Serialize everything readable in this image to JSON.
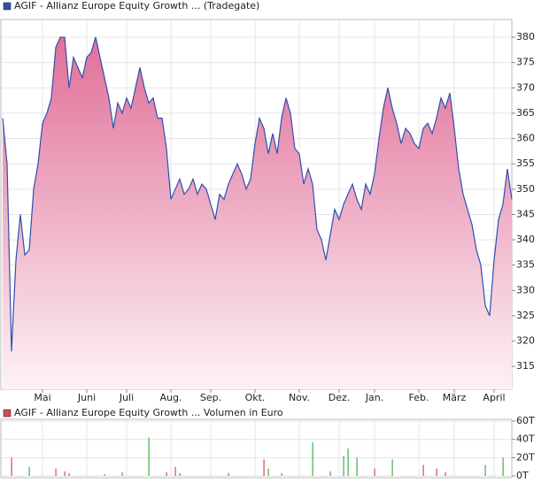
{
  "chart_data": [
    {
      "type": "area",
      "categories": [
        null,
        null,
        null,
        null,
        null,
        null,
        null,
        null,
        null,
        "Mai",
        null,
        null,
        null,
        null,
        null,
        null,
        null,
        null,
        null,
        "Juni",
        null,
        null,
        null,
        null,
        null,
        null,
        null,
        null,
        "Juli",
        null,
        null,
        null,
        null,
        null,
        null,
        null,
        null,
        null,
        "Aug.",
        null,
        null,
        null,
        null,
        null,
        null,
        null,
        null,
        "Sep.",
        null,
        null,
        null,
        null,
        null,
        null,
        null,
        null,
        null,
        "Okt.",
        null,
        null,
        null,
        null,
        null,
        null,
        null,
        null,
        null,
        "Nov.",
        null,
        null,
        null,
        null,
        null,
        null,
        null,
        null,
        "Dez.",
        null,
        null,
        null,
        null,
        null,
        null,
        null,
        "Jan.",
        null,
        null,
        null,
        null,
        null,
        null,
        null,
        null,
        null,
        "Feb.",
        null,
        null,
        null,
        null,
        null,
        null,
        null,
        "März",
        null,
        null,
        null,
        null,
        null,
        null,
        null,
        null,
        "April",
        null,
        null,
        null,
        null
      ],
      "series": [
        {
          "name": "AGIF - Allianz Europe Equity Growth ... (Tradegate)",
          "color": "#2f4fb0",
          "values": [
            364,
            355,
            318,
            336,
            345,
            337,
            338,
            350,
            355,
            363,
            365,
            368,
            378,
            380,
            380,
            370,
            376,
            374,
            372,
            376,
            377,
            380,
            376,
            372,
            368,
            362,
            367,
            365,
            368,
            366,
            370,
            374,
            370,
            367,
            368,
            364,
            364,
            358,
            348,
            350,
            352,
            349,
            350,
            352,
            349,
            351,
            350,
            347,
            344,
            349,
            348,
            351,
            353,
            355,
            353,
            350,
            352,
            359,
            364,
            362,
            357,
            361,
            357,
            364,
            368,
            365,
            358,
            357,
            351,
            354,
            351,
            342,
            340,
            336,
            341,
            346,
            344,
            347,
            349,
            351,
            348,
            346,
            351,
            349,
            353,
            360,
            366,
            370,
            366,
            363,
            359,
            362,
            361,
            359,
            358,
            362,
            363,
            361,
            364,
            368,
            366,
            369,
            362,
            354,
            349,
            346,
            343,
            338,
            335,
            327,
            325,
            336,
            344,
            347,
            354,
            348
          ]
        }
      ],
      "fill_top": "#e06f98",
      "fill_bottom": "#fdf2f6",
      "ylim": [
        310.5,
        383.5
      ],
      "yticks": [
        315,
        320,
        325,
        330,
        335,
        340,
        345,
        350,
        355,
        360,
        365,
        370,
        375,
        380
      ],
      "grid": true
    },
    {
      "type": "bar",
      "series": [
        {
          "name": "AGIF - Allianz Europe Equity Growth ... Volumen in Euro",
          "color": "#d04a5a",
          "values": [
            null,
            null,
            20000,
            null,
            null,
            null,
            10000,
            null,
            null,
            null,
            null,
            null,
            8000,
            null,
            5000,
            3000,
            null,
            null,
            null,
            null,
            null,
            null,
            null,
            2000,
            null,
            null,
            null,
            4000,
            null,
            null,
            null,
            null,
            null,
            42000,
            null,
            null,
            null,
            4000,
            null,
            10000,
            3000,
            null,
            null,
            null,
            null,
            null,
            null,
            null,
            null,
            null,
            null,
            3000,
            null,
            null,
            null,
            null,
            null,
            null,
            null,
            18000,
            8000,
            null,
            null,
            3000,
            null,
            null,
            null,
            null,
            null,
            null,
            37000,
            null,
            null,
            null,
            5000,
            null,
            null,
            22000,
            30000,
            null,
            20000,
            null,
            null,
            null,
            8000,
            null,
            null,
            null,
            18000,
            null,
            null,
            null,
            null,
            null,
            null,
            12000,
            null,
            null,
            8000,
            null,
            4000,
            null,
            null,
            null,
            null,
            null,
            null,
            null,
            null,
            12000,
            null,
            null,
            null,
            20000,
            null,
            null
          ],
          "colors": [
            null,
            null,
            "#d04a5a",
            null,
            null,
            null,
            "#3cb043",
            null,
            null,
            null,
            null,
            null,
            "#d04a5a",
            null,
            "#d04a5a",
            "#d04a5a",
            null,
            null,
            null,
            null,
            null,
            null,
            null,
            "#3cb043",
            null,
            null,
            null,
            "#3cb043",
            null,
            null,
            null,
            null,
            null,
            "#3cb043",
            null,
            null,
            null,
            "#d04a5a",
            null,
            "#d04a5a",
            "#d04a5a",
            null,
            null,
            null,
            null,
            null,
            null,
            null,
            null,
            null,
            null,
            "#d04a5a",
            null,
            null,
            null,
            null,
            null,
            null,
            null,
            "#d04a5a",
            "#3cb043",
            null,
            null,
            "#3cb043",
            null,
            null,
            null,
            null,
            null,
            null,
            "#3cb043",
            null,
            null,
            null,
            "#3cb043",
            null,
            null,
            "#3cb043",
            "#3cb043",
            null,
            "#3cb043",
            null,
            null,
            null,
            "#d04a5a",
            null,
            null,
            null,
            "#3cb043",
            null,
            null,
            null,
            null,
            null,
            null,
            "#d04a5a",
            null,
            null,
            "#d04a5a",
            null,
            "#d04a5a",
            null,
            null,
            null,
            null,
            null,
            null,
            null,
            null,
            "#3cb043",
            null,
            null,
            null,
            "#3cb043",
            null,
            null
          ]
        }
      ],
      "ylim": [
        -2000,
        62000
      ],
      "yticks": [
        {
          "value": 0,
          "label": "0T"
        },
        {
          "value": 20000,
          "label": "20T"
        },
        {
          "value": 40000,
          "label": "40T"
        },
        {
          "value": 60000,
          "label": "60T"
        }
      ],
      "grid": true
    }
  ]
}
